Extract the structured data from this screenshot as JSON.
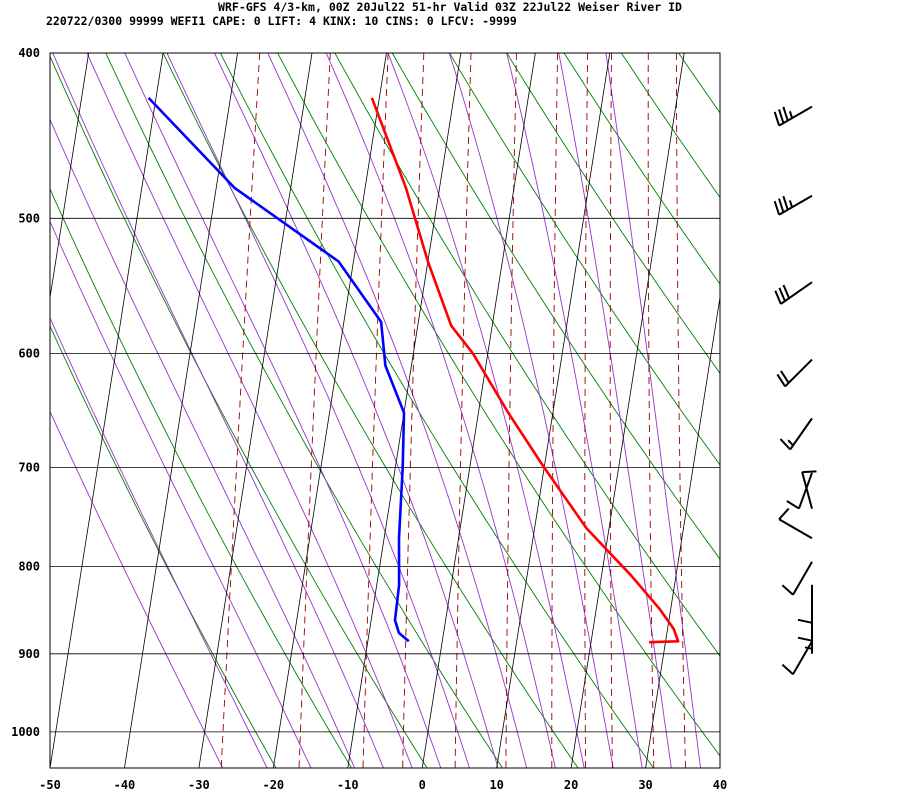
{
  "header": {
    "title": "WRF-GFS 4/3-km, 00Z 20Jul22 51-hr Valid 03Z 22Jul22 Weiser River ID",
    "indices": "220722/0300 99999  WEFI1   CAPE:     0 LIFT:     4 KINX:    10 CINS:     0 LFCV: -9999"
  },
  "chart_data": {
    "type": "line",
    "title": "WRF-GFS 4/3-km, 00Z 20Jul22 51-hr Valid 03Z 22Jul22 Weiser River ID",
    "xlabel": "",
    "ylabel": "",
    "x_ticks": [
      "-50",
      "-40",
      "-30",
      "-20",
      "-10",
      "0",
      "10",
      "20",
      "30",
      "40"
    ],
    "y_ticks": [
      "400",
      "500",
      "600",
      "700",
      "800",
      "900",
      "1000"
    ],
    "x_range": [
      -50,
      40
    ],
    "p_range": [
      400,
      1050
    ],
    "skew_deg_per_log_decade": 36.25,
    "grid": true,
    "background_lines": {
      "isotherm_color": "#000000",
      "dry_adiabat_color": "#008000",
      "saturated_adiabat_color": "#9933cc",
      "mixing_ratio_color": "#990000"
    },
    "series": [
      {
        "color": "#ff0000",
        "points": [
          {
            "p": 886,
            "t": 27.8
          },
          {
            "p": 885,
            "t": 31.7
          },
          {
            "p": 870,
            "t": 30.8
          },
          {
            "p": 848,
            "t": 28.6
          },
          {
            "p": 810,
            "t": 24.0
          },
          {
            "p": 760,
            "t": 17.0
          },
          {
            "p": 700,
            "t": 10.0
          },
          {
            "p": 650,
            "t": 4.0
          },
          {
            "p": 600,
            "t": -2.0
          },
          {
            "p": 578,
            "t": -5.5
          },
          {
            "p": 530,
            "t": -10.0
          },
          {
            "p": 480,
            "t": -14.5
          },
          {
            "p": 425,
            "t": -21.0
          }
        ]
      },
      {
        "color": "#0000ff",
        "points": [
          {
            "p": 885,
            "t": -4.5
          },
          {
            "p": 875,
            "t": -6.0
          },
          {
            "p": 860,
            "t": -6.8
          },
          {
            "p": 820,
            "t": -7.0
          },
          {
            "p": 770,
            "t": -8.0
          },
          {
            "p": 700,
            "t": -9.0
          },
          {
            "p": 650,
            "t": -10.0
          },
          {
            "p": 610,
            "t": -13.5
          },
          {
            "p": 575,
            "t": -15.0
          },
          {
            "p": 530,
            "t": -22.0
          },
          {
            "p": 480,
            "t": -37.5
          },
          {
            "p": 425,
            "t": -51.0
          }
        ]
      }
    ],
    "wind_barbs": [
      {
        "p": 430,
        "dir": 240,
        "spd": 35
      },
      {
        "p": 485,
        "dir": 240,
        "spd": 35
      },
      {
        "p": 545,
        "dir": 235,
        "spd": 30
      },
      {
        "p": 605,
        "dir": 225,
        "spd": 20
      },
      {
        "p": 655,
        "dir": 215,
        "spd": 15
      },
      {
        "p": 705,
        "dir": 200,
        "spd": 10
      },
      {
        "p": 740,
        "dir": 345,
        "spd": 10
      },
      {
        "p": 770,
        "dir": 300,
        "spd": 10
      },
      {
        "p": 795,
        "dir": 210,
        "spd": 10
      },
      {
        "p": 820,
        "dir": 180,
        "spd": 10
      },
      {
        "p": 840,
        "dir": 180,
        "spd": 10
      },
      {
        "p": 855,
        "dir": 180,
        "spd": 5
      },
      {
        "p": 885,
        "dir": 210,
        "spd": 10
      }
    ]
  }
}
